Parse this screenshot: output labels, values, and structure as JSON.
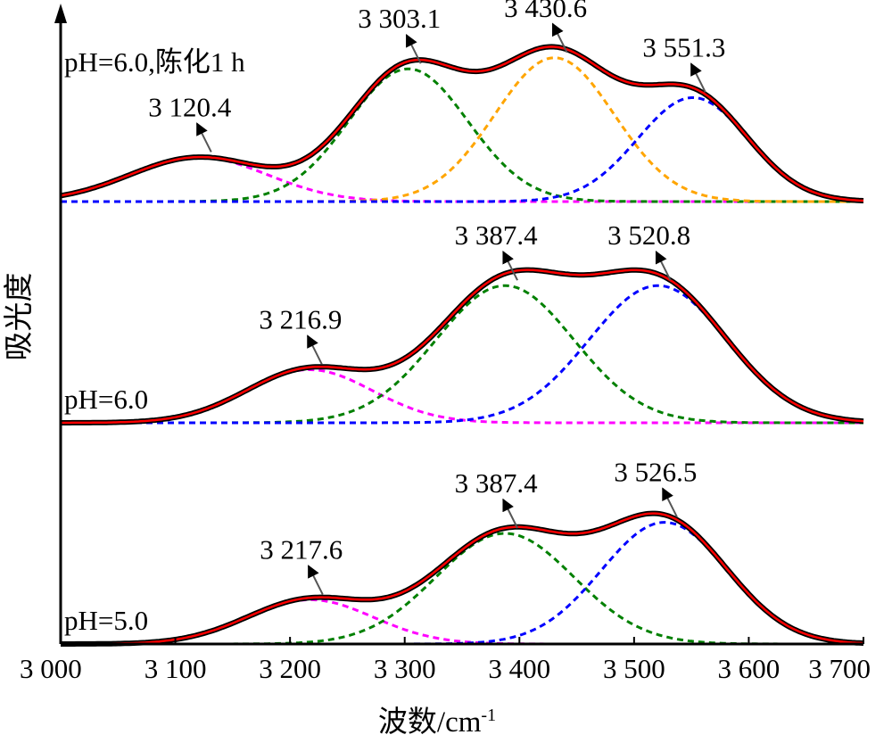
{
  "chart_data": {
    "type": "line",
    "title": "",
    "xlabel": "波数/cm",
    "xlabel_sup": "-1",
    "ylabel": "吸光度",
    "xlim": [
      3000,
      3700
    ],
    "x_ticks": [
      3000,
      3100,
      3200,
      3300,
      3400,
      3500,
      3600,
      3700
    ],
    "x_tick_labels": [
      "3 000",
      "3 100",
      "3 200",
      "3 300",
      "3 400",
      "3 500",
      "3 600",
      "3 700"
    ],
    "grid": false,
    "legend": "none",
    "colors": {
      "measured": "#000000",
      "fitted": "#ff0000",
      "peak_magenta": "#ff00ff",
      "peak_green": "#008000",
      "peak_orange": "#ffa500",
      "peak_blue": "#0000ff"
    },
    "panels": [
      {
        "label": "pH=6.0,陈化1 h",
        "baseline_offset": 2.0,
        "peaks": [
          {
            "center": 3120.4,
            "label": "3 120.4",
            "height": 0.2,
            "sigma": 60,
            "color": "magenta"
          },
          {
            "center": 3303.1,
            "label": "3 303.1",
            "height": 0.6,
            "sigma": 52,
            "color": "green"
          },
          {
            "center": 3430.6,
            "label": "3 430.6",
            "height": 0.65,
            "sigma": 52,
            "color": "orange"
          },
          {
            "center": 3551.3,
            "label": "3 551.3",
            "height": 0.47,
            "sigma": 48,
            "color": "blue"
          }
        ]
      },
      {
        "label": "pH=6.0",
        "baseline_offset": 1.0,
        "peaks": [
          {
            "center": 3216.9,
            "label": "3 216.9",
            "height": 0.24,
            "sigma": 55,
            "color": "magenta"
          },
          {
            "center": 3387.4,
            "label": "3 387.4",
            "height": 0.62,
            "sigma": 60,
            "color": "green"
          },
          {
            "center": 3520.8,
            "label": "3 520.8",
            "height": 0.62,
            "sigma": 60,
            "color": "blue"
          }
        ]
      },
      {
        "label": "pH=5.0",
        "baseline_offset": 0.0,
        "peaks": [
          {
            "center": 3217.6,
            "label": "3 217.6",
            "height": 0.2,
            "sigma": 55,
            "color": "magenta"
          },
          {
            "center": 3387.4,
            "label": "3 387.4",
            "height": 0.5,
            "sigma": 60,
            "color": "green"
          },
          {
            "center": 3526.5,
            "label": "3 526.5",
            "height": 0.55,
            "sigma": 55,
            "color": "blue"
          }
        ]
      }
    ]
  }
}
